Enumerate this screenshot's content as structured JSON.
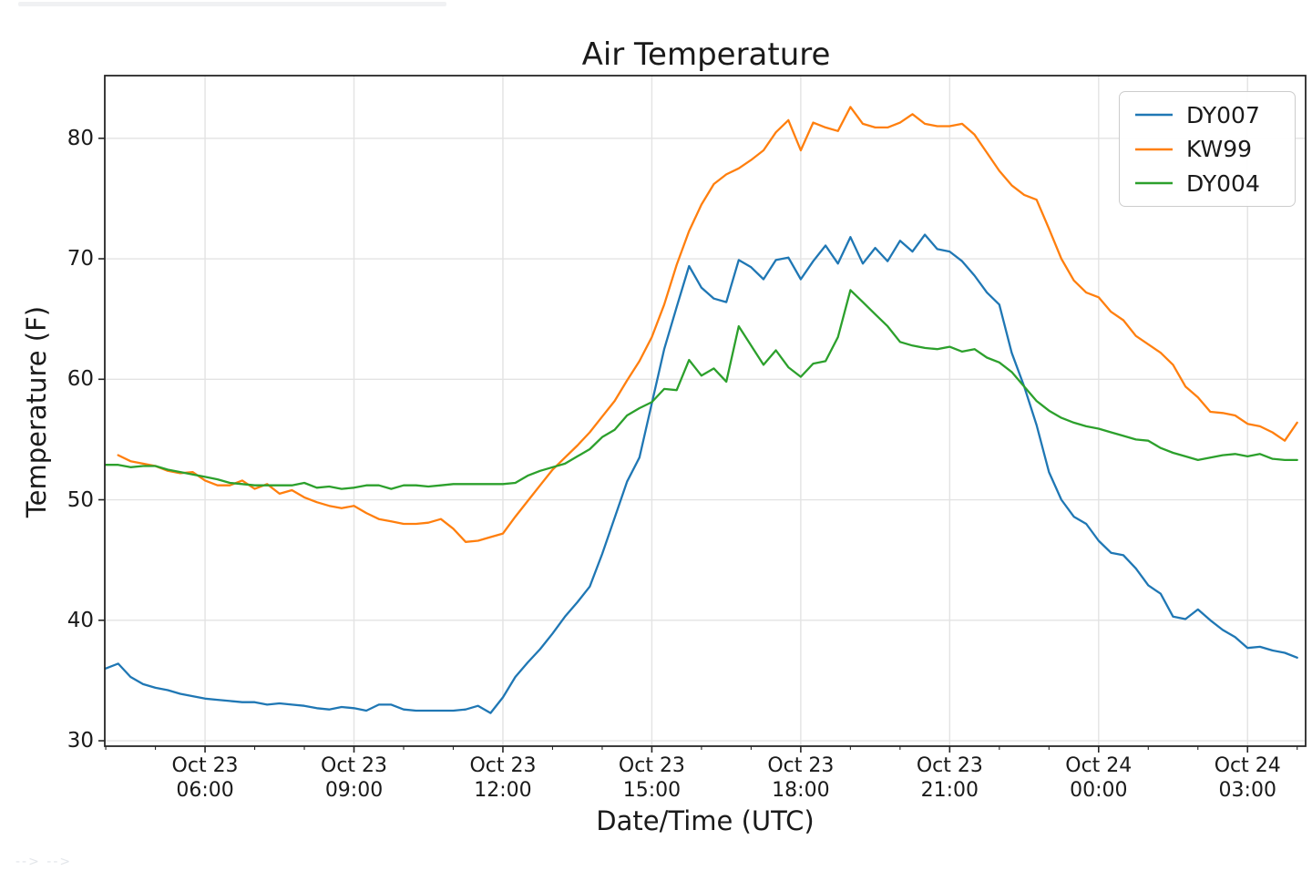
{
  "artifacts": {
    "arrows_text": "--> -->"
  },
  "chart_data": {
    "type": "line",
    "title": "Air Temperature",
    "xlabel": "Date/Time (UTC)",
    "ylabel": "Temperature (F)",
    "x_time_origin": "hours since Oct 23 00:00 UTC",
    "x": [
      4.0,
      4.25,
      4.5,
      4.75,
      5.0,
      5.25,
      5.5,
      5.75,
      6.0,
      6.25,
      6.5,
      6.75,
      7.0,
      7.25,
      7.5,
      7.75,
      8.0,
      8.25,
      8.5,
      8.75,
      9.0,
      9.25,
      9.5,
      9.75,
      10.0,
      10.25,
      10.5,
      10.75,
      11.0,
      11.25,
      11.5,
      11.75,
      12.0,
      12.25,
      12.5,
      12.75,
      13.0,
      13.25,
      13.5,
      13.75,
      14.0,
      14.25,
      14.5,
      14.75,
      15.0,
      15.25,
      15.5,
      15.75,
      16.0,
      16.25,
      16.5,
      16.75,
      17.0,
      17.25,
      17.5,
      17.75,
      18.0,
      18.25,
      18.5,
      18.75,
      19.0,
      19.25,
      19.5,
      19.75,
      20.0,
      20.25,
      20.5,
      20.75,
      21.0,
      21.25,
      21.5,
      21.75,
      22.0,
      22.25,
      22.5,
      22.75,
      23.0,
      23.25,
      23.5,
      23.75,
      24.0,
      24.25,
      24.5,
      24.75,
      25.0,
      25.25,
      25.5,
      25.75,
      26.0,
      26.25,
      26.5,
      26.75,
      27.0,
      27.25,
      27.5,
      27.75,
      28.0
    ],
    "series": [
      {
        "name": "DY007",
        "color": "#1f77b4",
        "values": [
          36.0,
          36.4,
          35.3,
          34.7,
          34.4,
          34.2,
          33.9,
          33.7,
          33.5,
          33.4,
          33.3,
          33.2,
          33.2,
          33.0,
          33.1,
          33.0,
          32.9,
          32.7,
          32.6,
          32.8,
          32.7,
          32.5,
          33.0,
          33.0,
          32.6,
          32.5,
          32.5,
          32.5,
          32.5,
          32.6,
          32.9,
          32.3,
          33.6,
          35.3,
          36.5,
          37.6,
          38.9,
          40.3,
          41.5,
          42.8,
          45.5,
          48.5,
          51.5,
          53.5,
          58.0,
          62.5,
          66.0,
          69.4,
          67.6,
          66.7,
          66.4,
          69.9,
          69.3,
          68.3,
          69.9,
          70.1,
          68.3,
          69.8,
          71.1,
          69.6,
          71.8,
          69.6,
          70.9,
          69.8,
          71.5,
          70.6,
          72.0,
          70.8,
          70.6,
          69.8,
          68.6,
          67.2,
          66.2,
          62.2,
          59.4,
          56.2,
          52.3,
          50.0,
          48.6,
          48.0,
          46.6,
          45.6,
          45.4,
          44.3,
          42.9,
          42.2,
          40.3,
          40.1,
          40.9,
          40.0,
          39.2,
          38.6,
          37.7,
          37.8,
          37.5,
          37.3,
          36.9
        ]
      },
      {
        "name": "KW99",
        "color": "#ff7f0e",
        "values": [
          null,
          53.7,
          53.2,
          53.0,
          52.8,
          52.4,
          52.2,
          52.3,
          51.6,
          51.2,
          51.2,
          51.6,
          50.9,
          51.3,
          50.5,
          50.8,
          50.2,
          49.8,
          49.5,
          49.3,
          49.5,
          48.9,
          48.4,
          48.2,
          48.0,
          48.0,
          48.1,
          48.4,
          47.6,
          46.5,
          46.6,
          46.9,
          47.2,
          48.6,
          49.9,
          51.2,
          52.5,
          53.5,
          54.5,
          55.6,
          56.9,
          58.2,
          59.9,
          61.5,
          63.5,
          66.2,
          69.5,
          72.3,
          74.5,
          76.2,
          77.0,
          77.5,
          78.2,
          79.0,
          80.5,
          81.5,
          79.0,
          81.3,
          80.9,
          80.6,
          82.6,
          81.2,
          80.9,
          80.9,
          81.3,
          82.0,
          81.2,
          81.0,
          81.0,
          81.2,
          80.3,
          78.8,
          77.3,
          76.1,
          75.3,
          74.9,
          72.5,
          70.0,
          68.2,
          67.2,
          66.8,
          65.6,
          64.9,
          63.6,
          62.9,
          62.2,
          61.2,
          59.4,
          58.5,
          57.3,
          57.2,
          57.0,
          56.3,
          56.1,
          55.6,
          54.9,
          56.4
        ]
      },
      {
        "name": "DY004",
        "color": "#2ca02c",
        "values": [
          52.9,
          52.9,
          52.7,
          52.8,
          52.8,
          52.5,
          52.3,
          52.1,
          51.9,
          51.7,
          51.4,
          51.3,
          51.2,
          51.2,
          51.2,
          51.2,
          51.4,
          51.0,
          51.1,
          50.9,
          51.0,
          51.2,
          51.2,
          50.9,
          51.2,
          51.2,
          51.1,
          51.2,
          51.3,
          51.3,
          51.3,
          51.3,
          51.3,
          51.4,
          52.0,
          52.4,
          52.7,
          53.0,
          53.6,
          54.2,
          55.2,
          55.8,
          57.0,
          57.6,
          58.1,
          59.2,
          59.1,
          61.6,
          60.3,
          60.9,
          59.8,
          64.4,
          62.8,
          61.2,
          62.4,
          61.0,
          60.2,
          61.3,
          61.5,
          63.5,
          67.4,
          66.4,
          65.4,
          64.4,
          63.1,
          62.8,
          62.6,
          62.5,
          62.7,
          62.3,
          62.5,
          61.8,
          61.4,
          60.6,
          59.4,
          58.2,
          57.4,
          56.8,
          56.4,
          56.1,
          55.9,
          55.6,
          55.3,
          55.0,
          54.9,
          54.3,
          53.9,
          53.6,
          53.3,
          53.5,
          53.7,
          53.8,
          53.6,
          53.8,
          53.4,
          53.3,
          53.3
        ]
      }
    ],
    "x_ticks": [
      {
        "hour": 6,
        "line1": "Oct 23",
        "line2": "06:00"
      },
      {
        "hour": 9,
        "line1": "Oct 23",
        "line2": "09:00"
      },
      {
        "hour": 12,
        "line1": "Oct 23",
        "line2": "12:00"
      },
      {
        "hour": 15,
        "line1": "Oct 23",
        "line2": "15:00"
      },
      {
        "hour": 18,
        "line1": "Oct 23",
        "line2": "18:00"
      },
      {
        "hour": 21,
        "line1": "Oct 23",
        "line2": "21:00"
      },
      {
        "hour": 24,
        "line1": "Oct 24",
        "line2": "00:00"
      },
      {
        "hour": 27,
        "line1": "Oct 24",
        "line2": "03:00"
      }
    ],
    "y_ticks": [
      30,
      40,
      50,
      60,
      70,
      80
    ],
    "xlim": [
      3.98,
      28.17
    ],
    "ylim": [
      29.55,
      85.2
    ],
    "grid": true,
    "legend_position": "upper right",
    "styles": {
      "grid_color": "#e3e3e3",
      "spine_color": "#262626",
      "tick_color": "#262626",
      "line_width": 2.3
    }
  }
}
